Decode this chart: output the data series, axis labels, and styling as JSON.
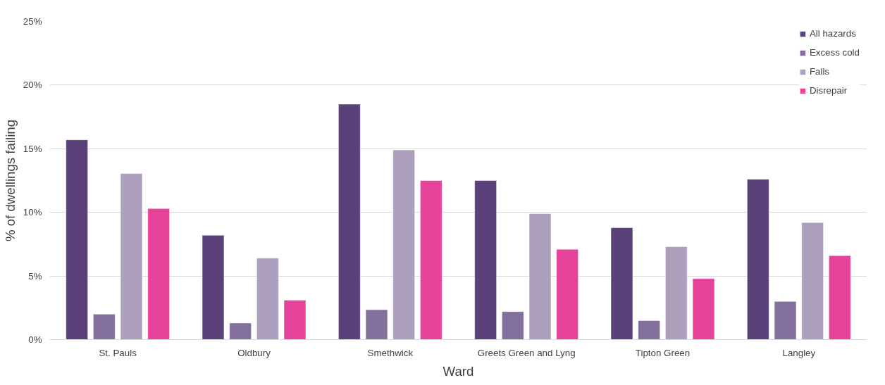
{
  "chart_data": {
    "type": "bar",
    "xlabel": "Ward",
    "ylabel": "% of dwellings failing",
    "categories": [
      "St. Pauls",
      "Oldbury",
      "Smethwick",
      "Greets Green and Lyng",
      "Tipton Green",
      "Langley"
    ],
    "series": [
      {
        "name": "All hazards",
        "color": "#5b417a",
        "values": [
          15.7,
          8.2,
          18.5,
          12.5,
          8.8,
          12.6
        ]
      },
      {
        "name": "Excess cold",
        "color": "#84709c",
        "values": [
          2.0,
          1.3,
          2.35,
          2.2,
          1.5,
          3.0
        ]
      },
      {
        "name": "Falls",
        "color": "#ada0bd",
        "values": [
          13.05,
          6.4,
          14.9,
          9.9,
          7.3,
          9.2
        ]
      },
      {
        "name": "Disrepair",
        "color": "#e6439a",
        "values": [
          10.3,
          3.1,
          12.5,
          7.1,
          4.8,
          6.6
        ]
      }
    ],
    "ylim": [
      0,
      25
    ],
    "yticks": [
      {
        "value": 0,
        "label": "0%"
      },
      {
        "value": 5,
        "label": "5%"
      },
      {
        "value": 10,
        "label": "10%"
      },
      {
        "value": 15,
        "label": "15%"
      },
      {
        "value": 20,
        "label": "20%"
      },
      {
        "value": 25,
        "label": "25%"
      }
    ],
    "grid": "y",
    "legend": "top right"
  }
}
